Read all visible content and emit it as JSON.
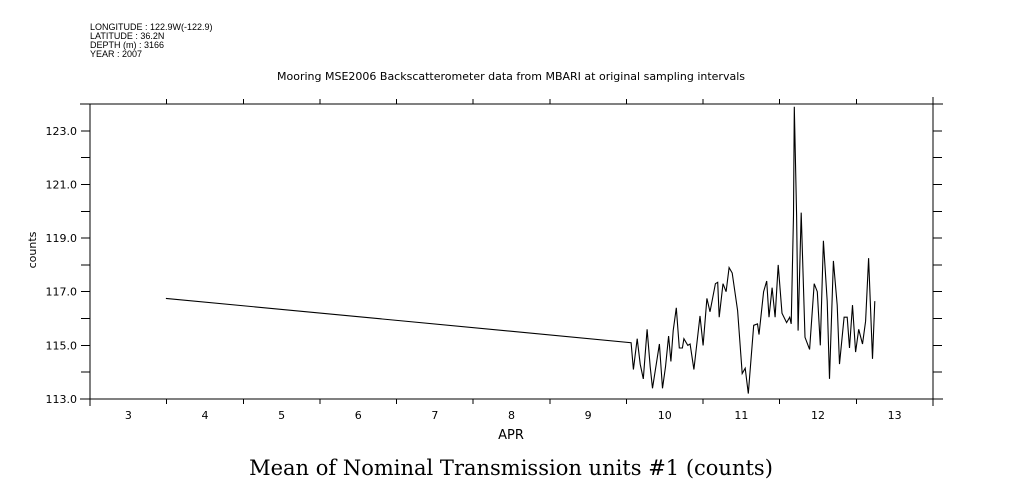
{
  "header": {
    "longitude": "LONGITUDE : 122.9W(-122.9)",
    "latitude": "LATITUDE : 36.2N",
    "depth": "DEPTH (m) : 3166",
    "year": "YEAR : 2007"
  },
  "chart_data": {
    "type": "line",
    "title": "Mooring MSE2006 Backscatterometer data from MBARI at original sampling intervals",
    "xlabel": "APR",
    "ylabel": "counts",
    "bottom_label": "Mean of Nominal Transmission units #1 (counts)",
    "xlim": [
      3,
      14
    ],
    "ylim": [
      113,
      124
    ],
    "x_tick_labels": [
      "3",
      "4",
      "5",
      "6",
      "7",
      "8",
      "9",
      "10",
      "11",
      "12",
      "13"
    ],
    "y_tick_labels": [
      "113.0",
      "115.0",
      "117.0",
      "119.0",
      "121.0",
      "123.0"
    ],
    "grid": false,
    "series": [
      {
        "name": "Nominal Transmission units #1",
        "x": [
          3.99,
          10.06,
          10.09,
          10.14,
          10.18,
          10.22,
          10.27,
          10.31,
          10.34,
          10.4,
          10.43,
          10.47,
          10.51,
          10.55,
          10.58,
          10.61,
          10.65,
          10.69,
          10.73,
          10.75,
          10.8,
          10.83,
          10.88,
          10.96,
          11.0,
          11.05,
          11.09,
          11.16,
          11.19,
          11.21,
          11.26,
          11.3,
          11.34,
          11.38,
          11.45,
          11.51,
          11.55,
          11.59,
          11.66,
          11.71,
          11.73,
          11.79,
          11.83,
          11.86,
          11.9,
          11.94,
          11.98,
          12.03,
          12.09,
          12.13,
          12.15,
          12.18,
          12.19,
          12.22,
          12.24,
          12.28,
          12.33,
          12.39,
          12.45,
          12.49,
          12.53,
          12.57,
          12.62,
          12.65,
          12.7,
          12.75,
          12.78,
          12.84,
          12.88,
          12.91,
          12.95,
          12.99,
          13.03,
          13.08,
          13.12,
          13.16,
          13.21,
          13.24
        ],
        "y": [
          116.75,
          115.1,
          114.1,
          115.25,
          114.3,
          113.75,
          115.6,
          114.2,
          113.4,
          114.5,
          115.05,
          113.4,
          114.2,
          115.35,
          114.4,
          115.55,
          116.4,
          114.9,
          114.9,
          115.25,
          115.0,
          115.05,
          114.1,
          116.1,
          115.0,
          116.75,
          116.25,
          117.3,
          117.35,
          116.05,
          117.3,
          117.0,
          117.9,
          117.7,
          116.3,
          113.95,
          114.15,
          113.2,
          115.75,
          115.8,
          115.4,
          117.0,
          117.4,
          116.05,
          117.15,
          116.05,
          118.0,
          116.2,
          115.85,
          116.05,
          115.8,
          119.85,
          123.9,
          119.85,
          115.55,
          119.95,
          115.3,
          114.85,
          117.3,
          117.0,
          115.0,
          118.9,
          116.65,
          113.75,
          118.15,
          116.5,
          114.3,
          116.05,
          116.05,
          114.9,
          116.5,
          114.75,
          115.6,
          115.05,
          115.9,
          118.25,
          114.5,
          116.65
        ]
      }
    ]
  }
}
